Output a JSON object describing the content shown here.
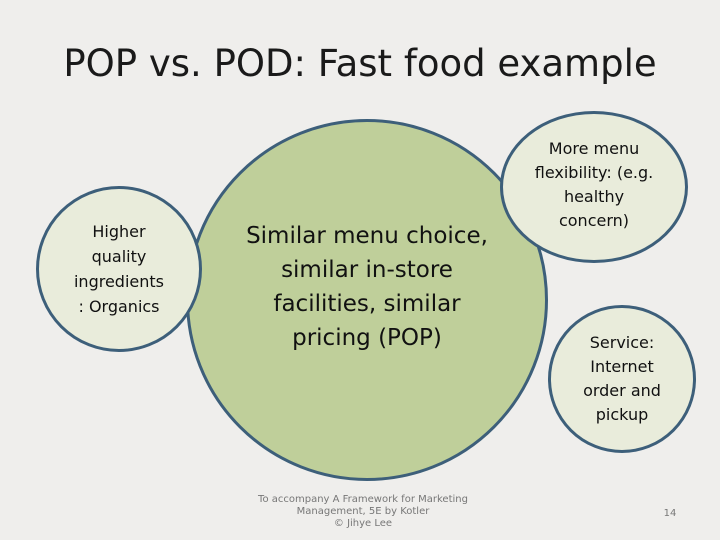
{
  "slide": {
    "title": "POP vs. POD: Fast food example",
    "center_circle": "Similar menu choice,\nsimilar in-store\nfacilities, similar\npricing (POP)",
    "left_circle": "Higher\nquality\ningredients\n: Organics",
    "top_right_circle": "More menu\nflexibility: (e.g.\nhealthy\nconcern)",
    "bottom_right_circle": "Service:\nInternet\norder and\npickup",
    "footer": "To accompany A Framework for Marketing\nManagement, 5E by Kotler\n© Jihye Lee",
    "page_number": "14"
  },
  "colors": {
    "background": "#efeeec",
    "center_fill": "#bfcf9a",
    "satellite_fill": "#e9ecdb",
    "circle_border": "#3d5f7a"
  }
}
